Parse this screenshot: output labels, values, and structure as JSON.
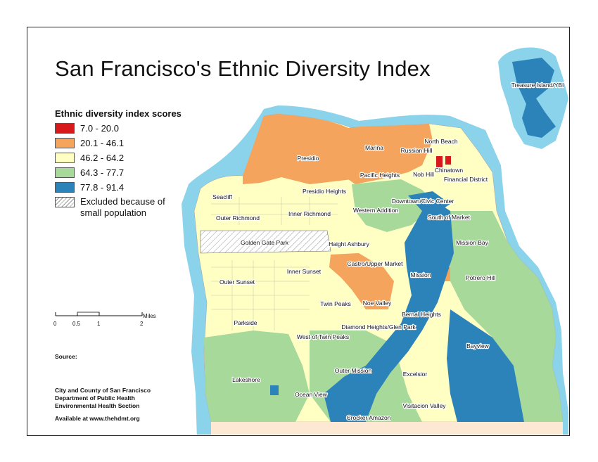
{
  "title": "San Francisco's Ethnic Diversity Index",
  "legend": {
    "title": "Ethnic diversity index scores",
    "items": [
      {
        "label": "7.0 - 20.0",
        "color": "#d7191c"
      },
      {
        "label": "20.1 - 46.1",
        "color": "#f4a45c"
      },
      {
        "label": "46.2 - 64.2",
        "color": "#ffffc4"
      },
      {
        "label": "64.3 - 77.7",
        "color": "#a6d99a"
      },
      {
        "label": "77.8 - 91.4",
        "color": "#2b83ba"
      },
      {
        "label": "Excluded because of small population",
        "color": "hatch"
      }
    ]
  },
  "scale_bar": {
    "unit": "Miles",
    "ticks": [
      "0",
      "0.5",
      "1",
      "2"
    ]
  },
  "notes": {
    "source_label": "Source:",
    "org_line1": "City and County of San Francisco",
    "org_line2": "Department of Public Health",
    "org_line3": "Environmental Health Section",
    "available": "Available at www.thehdmt.org"
  },
  "neighborhoods": [
    "Treasure Island/YBI",
    "Presidio",
    "Marina",
    "Russian Hill",
    "North Beach",
    "Nob Hill",
    "Chinatown",
    "Pacific Heights",
    "Financial District",
    "Seacliff",
    "Presidio Heights",
    "Inner Richmond",
    "Western Addition",
    "Downtown/Civic Center",
    "Outer Richmond",
    "South of Market",
    "Golden Gate Park",
    "Haight Ashbury",
    "Mission Bay",
    "Castro/Upper Market",
    "Inner Sunset",
    "Mission",
    "Outer Sunset",
    "Potrero Hill",
    "Twin Peaks",
    "Noe Valley",
    "Bernal Heights",
    "Parkside",
    "Diamond Heights/Glen Park",
    "West of Twin Peaks",
    "Bayview",
    "Outer Mission",
    "Lakeshore",
    "Excelsior",
    "Ocean View",
    "Visitacion Valley",
    "Crocker Amazon"
  ],
  "colors": {
    "water": "#8ad3ea",
    "county_border": "#fde8d4"
  }
}
